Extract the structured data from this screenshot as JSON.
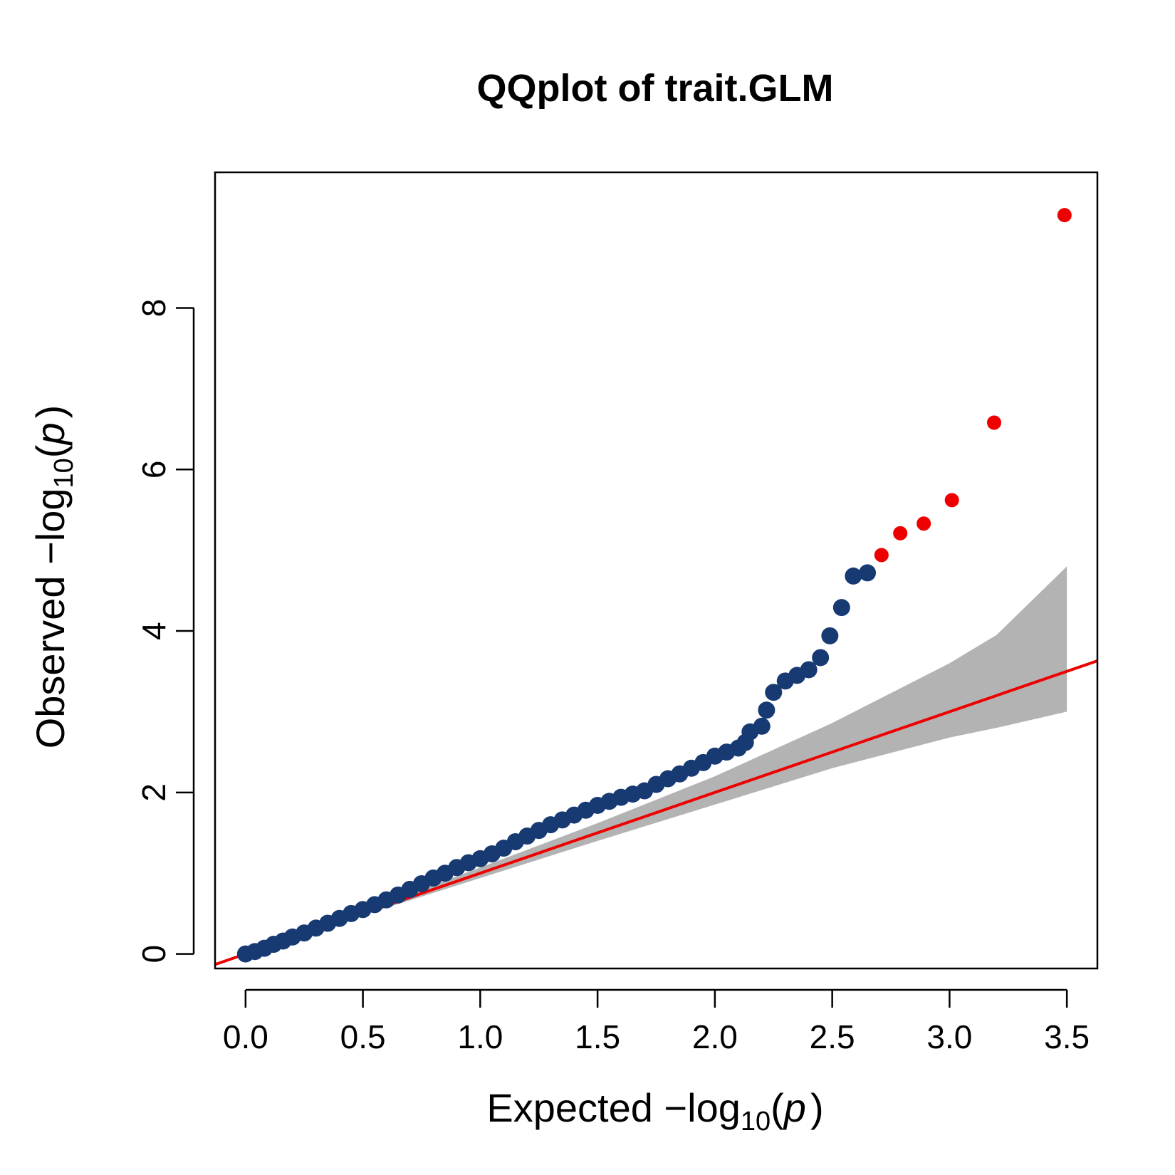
{
  "chart_data": {
    "type": "scatter",
    "title": "QQplot of trait.GLM",
    "xlabel": {
      "prefix": "Expected ",
      "minus": "−",
      "log": "log",
      "base": "10",
      "open": "(",
      "var": "p",
      "close": ")"
    },
    "ylabel": {
      "prefix": "Observed ",
      "minus": "−",
      "log": "log",
      "base": "10",
      "open": "(",
      "var": "p",
      "close": ")"
    },
    "xlim": [
      -0.13,
      3.63
    ],
    "ylim": [
      -0.18,
      9.68
    ],
    "x_ticks": [
      0.0,
      0.5,
      1.0,
      1.5,
      2.0,
      2.5,
      3.0,
      3.5
    ],
    "x_tick_labels": [
      "0.0",
      "0.5",
      "1.0",
      "1.5",
      "2.0",
      "2.5",
      "3.0",
      "3.5"
    ],
    "y_ticks": [
      0,
      2,
      4,
      6,
      8
    ],
    "y_tick_labels": [
      "0",
      "2",
      "4",
      "6",
      "8"
    ],
    "colors": {
      "points": "#173a73",
      "highlight_points": "#ee0000",
      "reference_line": "#ee0000",
      "confidence_band": "#b3b3b3"
    },
    "reference_line": {
      "slope": 1,
      "intercept": 0
    },
    "confidence_band": {
      "x": [
        0.0,
        0.5,
        1.0,
        1.5,
        2.0,
        2.5,
        3.0,
        3.2,
        3.5
      ],
      "upper": [
        0.0,
        0.53,
        1.07,
        1.62,
        2.2,
        2.86,
        3.6,
        3.95,
        4.8
      ],
      "lower": [
        0.0,
        0.48,
        0.94,
        1.4,
        1.85,
        2.3,
        2.68,
        2.8,
        3.0
      ]
    },
    "series": [
      {
        "x": [
          0.0,
          0.04,
          0.08,
          0.12,
          0.16,
          0.2,
          0.25,
          0.3,
          0.35,
          0.4,
          0.45,
          0.5,
          0.55,
          0.6,
          0.65,
          0.7,
          0.75,
          0.8,
          0.85,
          0.9,
          0.95,
          1.0,
          1.05,
          1.1,
          1.15,
          1.2,
          1.25,
          1.3,
          1.35,
          1.4,
          1.45,
          1.5,
          1.55,
          1.6,
          1.65,
          1.7,
          1.75,
          1.8,
          1.85,
          1.9,
          1.95,
          2.0,
          2.05,
          2.1,
          2.13,
          2.15,
          2.2,
          2.22,
          2.25,
          2.3,
          2.35,
          2.4,
          2.45,
          2.49,
          2.54,
          2.59,
          2.65
        ],
        "y": [
          0.0,
          0.03,
          0.07,
          0.12,
          0.16,
          0.21,
          0.26,
          0.32,
          0.38,
          0.44,
          0.5,
          0.55,
          0.61,
          0.67,
          0.73,
          0.8,
          0.87,
          0.94,
          1.0,
          1.07,
          1.13,
          1.18,
          1.24,
          1.31,
          1.39,
          1.46,
          1.53,
          1.6,
          1.66,
          1.72,
          1.78,
          1.84,
          1.89,
          1.94,
          1.98,
          2.02,
          2.1,
          2.17,
          2.23,
          2.3,
          2.37,
          2.45,
          2.5,
          2.55,
          2.62,
          2.75,
          2.82,
          3.02,
          3.24,
          3.38,
          3.45,
          3.52,
          3.67,
          3.94,
          4.29,
          4.68,
          4.72
        ]
      },
      {
        "highlighted": true,
        "x": [
          2.71,
          2.79,
          2.89,
          3.01,
          3.19,
          3.49
        ],
        "y": [
          4.94,
          5.21,
          5.33,
          5.62,
          6.58,
          9.15
        ]
      }
    ]
  }
}
